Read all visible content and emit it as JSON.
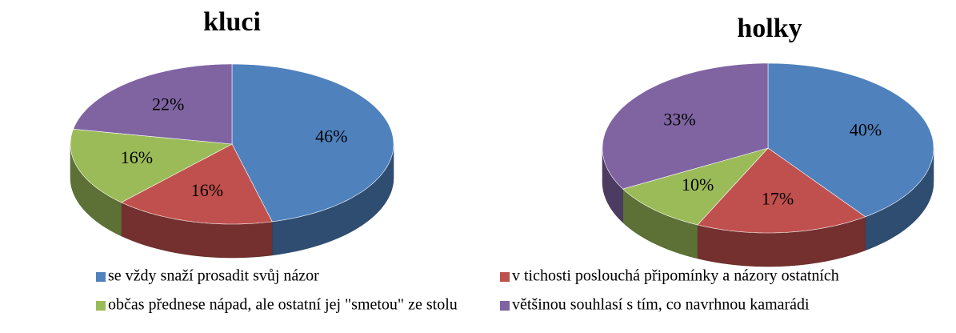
{
  "chart_data": [
    {
      "type": "pie",
      "title": "kluci",
      "values": [
        46,
        16,
        16,
        22
      ],
      "value_labels": [
        "46%",
        "16%",
        "16%",
        "22%"
      ],
      "colors": [
        "#4f81bd",
        "#c0504d",
        "#9bbb59",
        "#8064a2"
      ]
    },
    {
      "type": "pie",
      "title": "holky",
      "values": [
        40,
        17,
        10,
        33
      ],
      "value_labels": [
        "40%",
        "17%",
        "10%",
        "33%"
      ],
      "colors": [
        "#4f81bd",
        "#c0504d",
        "#9bbb59",
        "#8064a2"
      ]
    }
  ],
  "legend": {
    "items": [
      "se vždy snaží prosadit svůj názor",
      "v tichosti poslouchá připomínky a názory ostatních",
      "občas přednese nápad, ale ostatní jej \"smetou\" ze stolu",
      "většinou souhlasí s tím, co navrhnou kamarádi"
    ],
    "colors": [
      "#4f81bd",
      "#c0504d",
      "#9bbb59",
      "#8064a2"
    ]
  }
}
